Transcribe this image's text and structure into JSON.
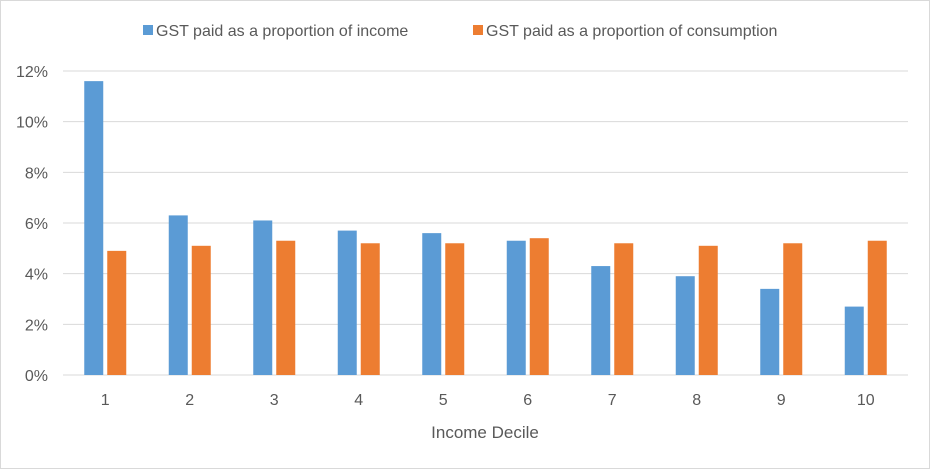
{
  "chart_data": {
    "type": "bar",
    "title": "",
    "xlabel": "Income Decile",
    "ylabel": "",
    "ylim": [
      0,
      12
    ],
    "yticks": [
      "0%",
      "2%",
      "4%",
      "6%",
      "8%",
      "10%",
      "12%"
    ],
    "categories": [
      "1",
      "2",
      "3",
      "4",
      "5",
      "6",
      "7",
      "8",
      "9",
      "10"
    ],
    "grid": true,
    "legend_position": "top",
    "series": [
      {
        "name": "GST paid as a proportion of income",
        "color": "#5b9bd5",
        "values": [
          11.6,
          6.3,
          6.1,
          5.7,
          5.6,
          5.3,
          4.3,
          3.9,
          3.4,
          2.7
        ]
      },
      {
        "name": "GST paid as a proportion of consumption",
        "color": "#ed7d31",
        "values": [
          4.9,
          5.1,
          5.3,
          5.2,
          5.2,
          5.4,
          5.2,
          5.1,
          5.2,
          5.3
        ]
      }
    ]
  }
}
